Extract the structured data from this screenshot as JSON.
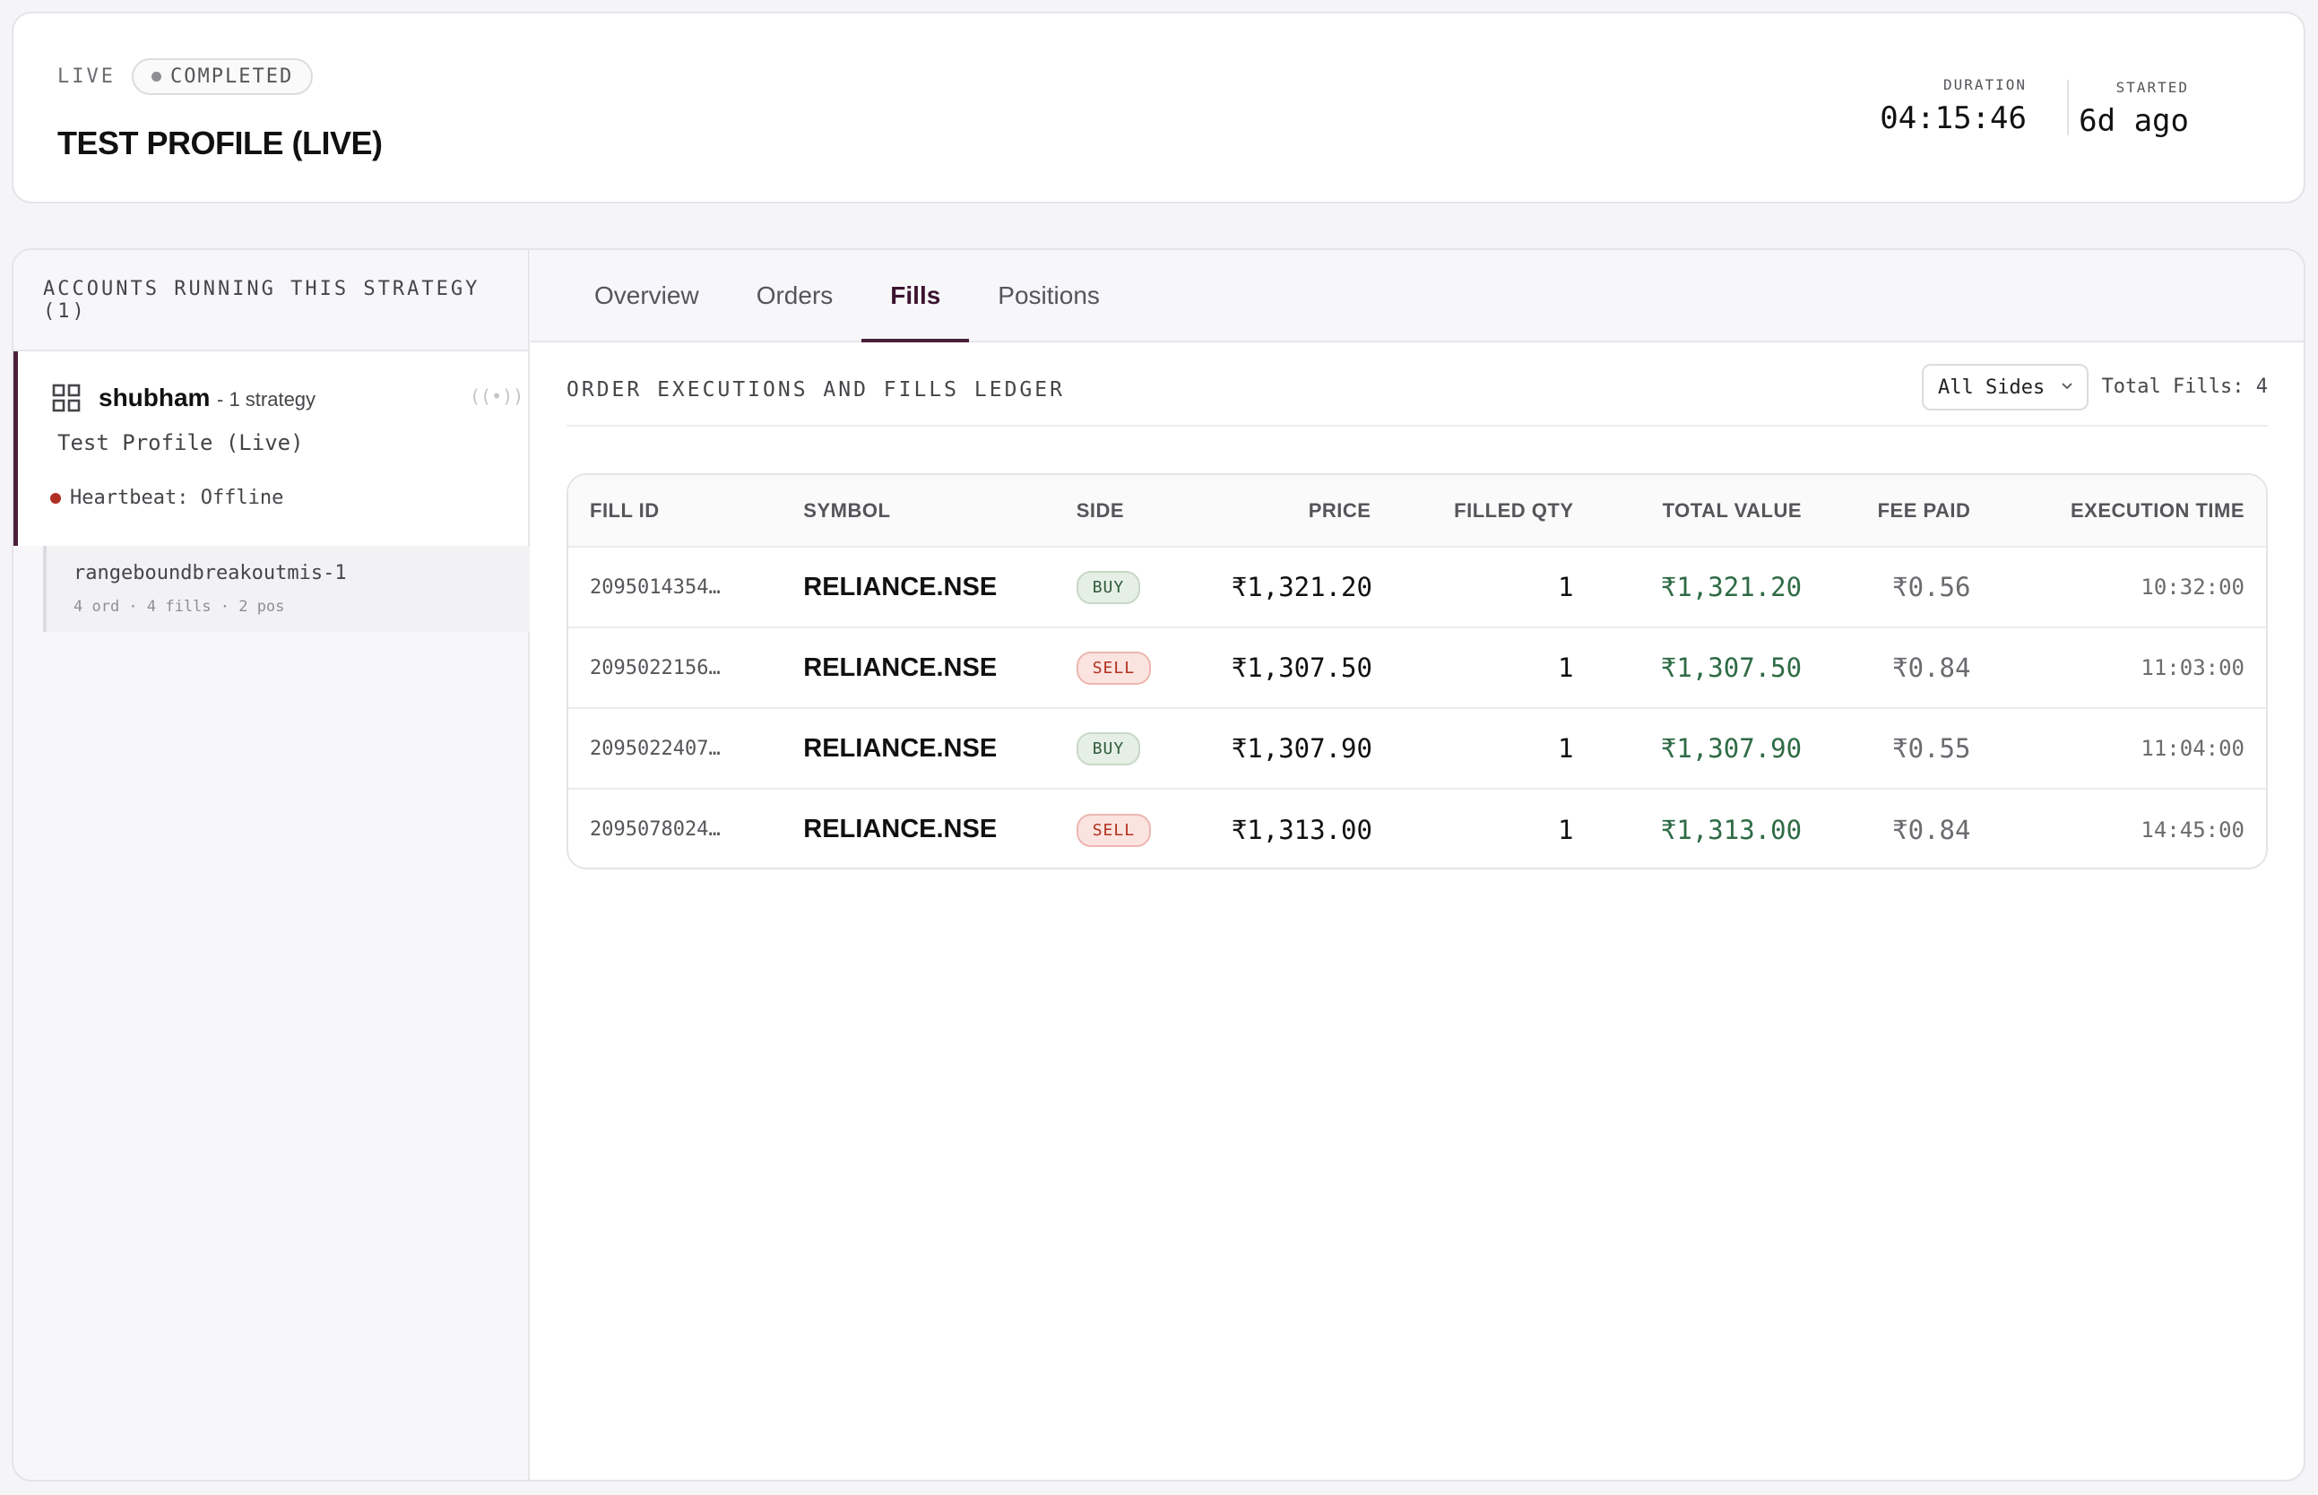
{
  "header": {
    "live_label": "LIVE",
    "status": "COMPLETED",
    "title": "TEST PROFILE (LIVE)",
    "duration_label": "DURATION",
    "duration_value": "04:15:46",
    "started_label": "STARTED",
    "started_value": "6d ago"
  },
  "sidebar": {
    "heading": "ACCOUNTS RUNNING THIS STRATEGY (1)",
    "account": {
      "name": "shubham",
      "sub": "- 1 strategy",
      "profile": "Test Profile (Live)",
      "heartbeat": "Heartbeat: Offline"
    },
    "strategy": {
      "name": "rangeboundbreakoutmis-1",
      "meta": "4 ord · 4 fills · 2 pos"
    }
  },
  "tabs": [
    {
      "label": "Overview"
    },
    {
      "label": "Orders"
    },
    {
      "label": "Fills"
    },
    {
      "label": "Positions"
    }
  ],
  "active_tab": "Fills",
  "ledger": {
    "title": "ORDER EXECUTIONS AND FILLS LEDGER",
    "filter_value": "All Sides",
    "total_fills": "Total Fills: 4"
  },
  "table": {
    "headers": [
      "FILL ID",
      "SYMBOL",
      "SIDE",
      "PRICE",
      "FILLED QTY",
      "TOTAL VALUE",
      "FEE PAID",
      "EXECUTION TIME"
    ],
    "rows": [
      {
        "fill_id": "2095014354…",
        "symbol": "RELIANCE.NSE",
        "side": "BUY",
        "price": "₹1,321.20",
        "qty": "1",
        "total": "₹1,321.20",
        "fee": "₹0.56",
        "time": "10:32:00"
      },
      {
        "fill_id": "2095022156…",
        "symbol": "RELIANCE.NSE",
        "side": "SELL",
        "price": "₹1,307.50",
        "qty": "1",
        "total": "₹1,307.50",
        "fee": "₹0.84",
        "time": "11:03:00"
      },
      {
        "fill_id": "2095022407…",
        "symbol": "RELIANCE.NSE",
        "side": "BUY",
        "price": "₹1,307.90",
        "qty": "1",
        "total": "₹1,307.90",
        "fee": "₹0.55",
        "time": "11:04:00"
      },
      {
        "fill_id": "2095078024…",
        "symbol": "RELIANCE.NSE",
        "side": "SELL",
        "price": "₹1,313.00",
        "qty": "1",
        "total": "₹1,313.00",
        "fee": "₹0.84",
        "time": "14:45:00"
      }
    ]
  },
  "colors": {
    "accent": "#4a1f3a",
    "buy": "#2e5a3a",
    "sell": "#b0301e",
    "value_green": "#2e6b45",
    "offline_red": "#b03024"
  },
  "icons": {
    "account": "grid-icon",
    "broadcast": "broadcast-icon",
    "status": "dot-icon",
    "select": "chevron-down-icon"
  }
}
